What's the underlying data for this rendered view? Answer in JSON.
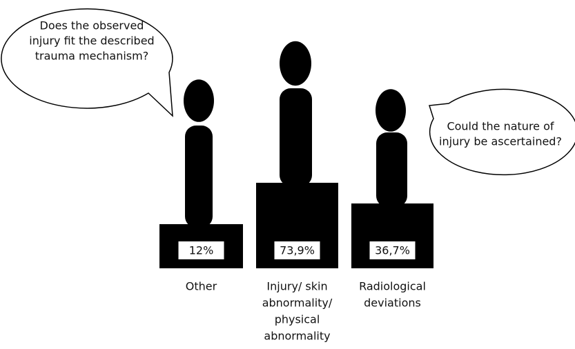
{
  "bubbles": [
    {
      "lines": [
        "Does the observed",
        "injury fit the described",
        "trauma mechanism?"
      ]
    },
    {
      "lines": [
        "Could the nature of",
        "injury be ascertained?"
      ]
    }
  ],
  "items": [
    {
      "value": "12%",
      "label_lines": [
        "Other"
      ]
    },
    {
      "value": "73,9%",
      "label_lines": [
        "Injury/ skin",
        "abnormality/",
        "physical",
        "abnormality"
      ]
    },
    {
      "value": "36,7%",
      "label_lines": [
        "Radiological",
        "deviations"
      ]
    }
  ]
}
